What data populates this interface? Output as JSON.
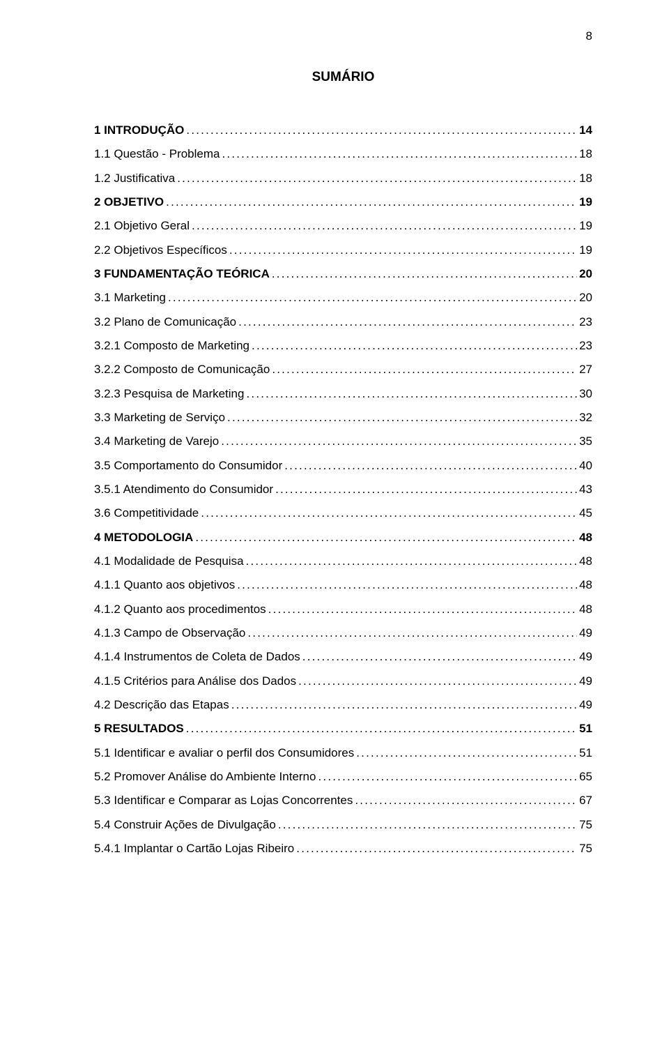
{
  "page_number": "8",
  "title": "SUMÁRIO",
  "font": {
    "family": "Arial",
    "body_size_pt": 12,
    "title_size_pt": 13
  },
  "colors": {
    "text": "#000000",
    "background": "#ffffff"
  },
  "toc": [
    {
      "label": "1 INTRODUÇÃO",
      "page": "14",
      "bold": true
    },
    {
      "label": "1.1 Questão - Problema",
      "page": "18",
      "bold": false
    },
    {
      "label": "1.2 Justificativa",
      "page": "18",
      "bold": false
    },
    {
      "label": "2 OBJETIVO",
      "page": "19",
      "bold": true
    },
    {
      "label": "2.1 Objetivo Geral",
      "page": "19",
      "bold": false
    },
    {
      "label": "2.2 Objetivos Específicos",
      "page": "19",
      "bold": false
    },
    {
      "label": "3 FUNDAMENTAÇÃO TEÓRICA",
      "page": "20",
      "bold": true
    },
    {
      "label": "3.1 Marketing",
      "page": "20",
      "bold": false
    },
    {
      "label": "3.2 Plano de Comunicação",
      "page": "23",
      "bold": false
    },
    {
      "label": "3.2.1 Composto de Marketing",
      "page": "23",
      "bold": false
    },
    {
      "label": "3.2.2 Composto de Comunicação",
      "page": "27",
      "bold": false
    },
    {
      "label": "3.2.3 Pesquisa de Marketing",
      "page": "30",
      "bold": false
    },
    {
      "label": "3.3 Marketing de Serviço",
      "page": "32",
      "bold": false
    },
    {
      "label": "3.4 Marketing de Varejo",
      "page": "35",
      "bold": false
    },
    {
      "label": "3.5 Comportamento do Consumidor",
      "page": "40",
      "bold": false
    },
    {
      "label": "3.5.1 Atendimento do Consumidor",
      "page": "43",
      "bold": false
    },
    {
      "label": "3.6 Competitividade",
      "page": "45",
      "bold": false
    },
    {
      "label": "4 METODOLOGIA",
      "page": "48",
      "bold": true
    },
    {
      "label": "4.1 Modalidade de Pesquisa",
      "page": "48",
      "bold": false
    },
    {
      "label": "4.1.1 Quanto aos objetivos",
      "page": "48",
      "bold": false
    },
    {
      "label": "4.1.2 Quanto aos procedimentos",
      "page": "48",
      "bold": false
    },
    {
      "label": "4.1.3 Campo de Observação",
      "page": "49",
      "bold": false
    },
    {
      "label": "4.1.4 Instrumentos de Coleta de Dados",
      "page": "49",
      "bold": false
    },
    {
      "label": "4.1.5 Critérios para Análise dos Dados",
      "page": "49",
      "bold": false
    },
    {
      "label": "4.2  Descrição das Etapas",
      "page": "49",
      "bold": false
    },
    {
      "label": "5 RESULTADOS",
      "page": "51",
      "bold": true
    },
    {
      "label": "5.1 Identificar e avaliar o perfil dos Consumidores",
      "page": "51",
      "bold": false
    },
    {
      "label": "5.2 Promover Análise do Ambiente Interno",
      "page": "65",
      "bold": false
    },
    {
      "label": "5.3 Identificar e Comparar as Lojas Concorrentes",
      "page": "67",
      "bold": false
    },
    {
      "label": "5.4 Construir Ações de Divulgação",
      "page": "75",
      "bold": false
    },
    {
      "label": "5.4.1 Implantar o Cartão Lojas Ribeiro",
      "page": "75",
      "bold": false
    }
  ]
}
